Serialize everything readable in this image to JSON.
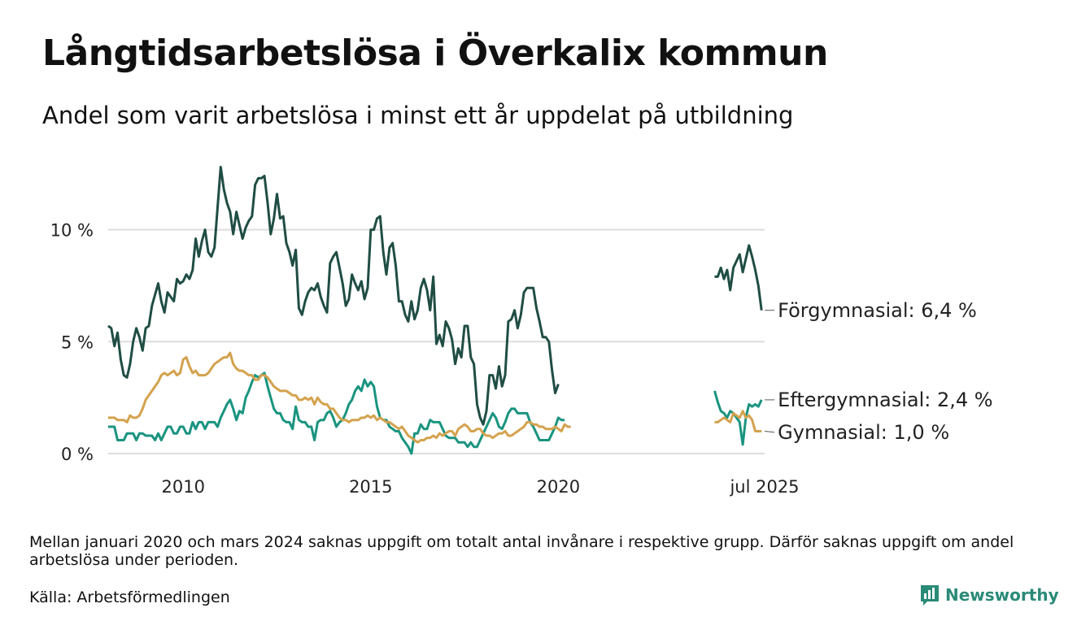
{
  "title": "Långtidsarbetslösa i Överkalix kommun",
  "subtitle": "Andel som varit arbetslösa i minst ett år uppdelat på utbildning",
  "note": "Mellan januari 2020 och mars 2024 saknas uppgift om totalt antal invånare i respektive grupp. Därför saknas uppgift om andel arbetslösa under perioden.",
  "source": "Källa: Arbetsförmedlingen",
  "brand": "Newsworthy",
  "chart_data": {
    "type": "line",
    "ylim": [
      0,
      13
    ],
    "xlim": [
      "2008-01",
      "2025-07"
    ],
    "y_ticks": [
      {
        "v": 0,
        "label": "0 %"
      },
      {
        "v": 5,
        "label": "5 %"
      },
      {
        "v": 10,
        "label": "10 %"
      }
    ],
    "x_ticks": [
      {
        "d": "2010-01",
        "label": "2010"
      },
      {
        "d": "2015-01",
        "label": "2015"
      },
      {
        "d": "2020-01",
        "label": "2020"
      },
      {
        "d": "2025-07",
        "label": "jul 2025"
      }
    ],
    "grid": "horizontal",
    "series": [
      {
        "name": "Förgymnasial",
        "end_label": "Förgymnasial: 6,4 %",
        "color": "#1f4d44",
        "segments": [
          {
            "start": "2008-01",
            "values": [
              5.7,
              5.6,
              4.8,
              5.4,
              4.2,
              3.5,
              3.4,
              4.0,
              5.0,
              5.6,
              5.2,
              4.6,
              5.6,
              5.7,
              6.6,
              7.1,
              7.6,
              6.8,
              6.3,
              7.2,
              7.0,
              6.8,
              7.8,
              7.6,
              7.7,
              8.0,
              7.8,
              8.2,
              9.6,
              8.8,
              9.5,
              10.0,
              9.0,
              8.8,
              9.2,
              11.0,
              12.8,
              11.8,
              11.2,
              10.8,
              9.8,
              10.8,
              10.2,
              9.6,
              10.1,
              10.4,
              10.6,
              12.0,
              12.3,
              12.3,
              12.4,
              11.2,
              9.8,
              10.5,
              11.6,
              10.5,
              10.6,
              9.4,
              9.0,
              8.4,
              9.1,
              6.5,
              6.2,
              6.8,
              7.2,
              7.4,
              7.3,
              7.6,
              7.0,
              6.6,
              6.3,
              8.5,
              8.8,
              9.0,
              8.3,
              7.6,
              6.6,
              6.9,
              8.0,
              7.6,
              7.3,
              7.7,
              6.9,
              7.4,
              10.0,
              10.0,
              10.5,
              10.6,
              9.0,
              8.0,
              9.2,
              9.4,
              8.4,
              6.8,
              6.8,
              6.2,
              5.9,
              6.8,
              6.0,
              6.4,
              7.4,
              7.8,
              7.3,
              6.4,
              7.9,
              4.9,
              5.3,
              4.8,
              5.9,
              5.6,
              5.1,
              4.0,
              4.7,
              4.3,
              5.7,
              5.7,
              4.3,
              4.0,
              2.2,
              1.6,
              1.3,
              1.9,
              3.5,
              3.5,
              2.9,
              3.9,
              3.0,
              3.5,
              5.9,
              6.0,
              6.4,
              5.6,
              6.2,
              7.2,
              7.4,
              7.4,
              7.4,
              6.5,
              5.9,
              5.2,
              5.2,
              5.0,
              3.7,
              2.7,
              3.1
            ]
          },
          {
            "start": "2024-03",
            "values": [
              7.9,
              7.9,
              8.3,
              7.8,
              8.2,
              7.3,
              8.3,
              8.6,
              8.9,
              8.1,
              8.7,
              9.3,
              8.8,
              8.2,
              7.5,
              6.4
            ]
          }
        ]
      },
      {
        "name": "Eftergymnasial",
        "end_label": "Eftergymnasial: 2,4 %",
        "color": "#1a9480",
        "segments": [
          {
            "start": "2008-01",
            "values": [
              1.2,
              1.2,
              1.2,
              0.6,
              0.6,
              0.6,
              0.9,
              0.9,
              0.9,
              0.6,
              0.9,
              0.9,
              0.8,
              0.8,
              0.8,
              0.6,
              0.9,
              0.6,
              0.9,
              1.2,
              1.2,
              0.9,
              0.9,
              1.2,
              1.2,
              0.9,
              0.9,
              1.4,
              1.1,
              1.4,
              1.4,
              1.1,
              1.4,
              1.4,
              1.4,
              1.2,
              1.6,
              1.9,
              2.2,
              2.4,
              2.0,
              1.5,
              1.9,
              1.8,
              2.5,
              2.8,
              3.2,
              3.5,
              3.4,
              3.5,
              3.6,
              3.0,
              2.5,
              2.0,
              1.8,
              1.8,
              1.5,
              1.4,
              1.4,
              1.1,
              2.1,
              1.5,
              1.4,
              1.4,
              1.2,
              1.2,
              0.6,
              1.4,
              1.5,
              1.5,
              1.8,
              1.9,
              1.6,
              1.2,
              1.4,
              1.5,
              1.8,
              2.2,
              2.4,
              2.8,
              3.0,
              2.8,
              3.3,
              3.0,
              3.2,
              3.0,
              2.1,
              1.6,
              1.5,
              1.5,
              1.2,
              1.1,
              1.0,
              1.0,
              0.7,
              0.5,
              0.3,
              0.0,
              0.9,
              0.9,
              1.3,
              1.1,
              1.1,
              1.5,
              1.4,
              1.4,
              1.4,
              1.1,
              0.8,
              0.7,
              0.7,
              0.7,
              0.5,
              0.5,
              0.5,
              0.3,
              0.5,
              0.3,
              0.3,
              0.6,
              0.9,
              1.2,
              1.5,
              1.8,
              1.6,
              1.2,
              1.1,
              1.4,
              1.8,
              2.0,
              2.0,
              1.8,
              1.8,
              1.8,
              1.8,
              1.4,
              1.2,
              0.9,
              0.6,
              0.6,
              0.6,
              0.6,
              0.9,
              1.2,
              1.6,
              1.5,
              1.5
            ]
          },
          {
            "start": "2024-03",
            "values": [
              2.8,
              2.3,
              1.9,
              1.8,
              1.6,
              1.9,
              1.8,
              1.6,
              1.4,
              0.4,
              1.6,
              2.2,
              2.1,
              2.2,
              2.1,
              2.4
            ]
          }
        ]
      },
      {
        "name": "Gymnasial",
        "end_label": "Gymnasial: 1,0 %",
        "color": "#d4a24e",
        "segments": [
          {
            "start": "2008-01",
            "values": [
              1.6,
              1.6,
              1.6,
              1.5,
              1.5,
              1.5,
              1.4,
              1.7,
              1.6,
              1.6,
              1.7,
              2.0,
              2.4,
              2.6,
              2.8,
              3.0,
              3.2,
              3.5,
              3.6,
              3.5,
              3.6,
              3.7,
              3.5,
              3.6,
              4.2,
              4.3,
              3.9,
              3.6,
              3.7,
              3.5,
              3.5,
              3.5,
              3.6,
              3.8,
              4.0,
              4.1,
              4.2,
              4.3,
              4.3,
              4.5,
              4.0,
              3.8,
              3.7,
              3.7,
              3.6,
              3.5,
              3.5,
              3.3,
              3.3,
              3.5,
              3.5,
              3.4,
              3.2,
              3.0,
              2.9,
              2.8,
              2.8,
              2.8,
              2.7,
              2.6,
              2.6,
              2.4,
              2.4,
              2.5,
              2.4,
              2.5,
              2.2,
              2.5,
              2.3,
              2.2,
              2.2,
              2.0,
              2.0,
              1.8,
              1.6,
              1.5,
              1.5,
              1.4,
              1.5,
              1.5,
              1.5,
              1.6,
              1.6,
              1.7,
              1.6,
              1.7,
              1.5,
              1.6,
              1.5,
              1.4,
              1.4,
              1.3,
              1.2,
              1.1,
              1.2,
              1.0,
              0.8,
              0.7,
              0.6,
              0.5,
              0.6,
              0.6,
              0.7,
              0.7,
              0.8,
              0.7,
              0.9,
              0.8,
              0.9,
              1.0,
              1.0,
              0.8,
              1.1,
              1.2,
              1.3,
              1.2,
              1.0,
              1.0,
              1.1,
              1.1,
              0.9,
              0.8,
              0.8,
              0.7,
              0.8,
              0.9,
              0.9,
              1.0,
              0.8,
              0.8,
              0.9,
              1.0,
              1.1,
              1.2,
              1.4,
              1.4,
              1.3,
              1.3,
              1.2,
              1.2,
              1.1,
              1.1,
              1.1,
              1.2,
              1.1,
              1.0,
              1.3,
              1.2,
              1.2
            ]
          },
          {
            "start": "2024-03",
            "values": [
              1.4,
              1.4,
              1.5,
              1.6,
              1.5,
              1.4,
              1.8,
              1.7,
              1.6,
              1.9,
              1.6,
              1.7,
              1.5,
              1.0,
              1.0,
              1.0
            ]
          }
        ]
      }
    ]
  }
}
